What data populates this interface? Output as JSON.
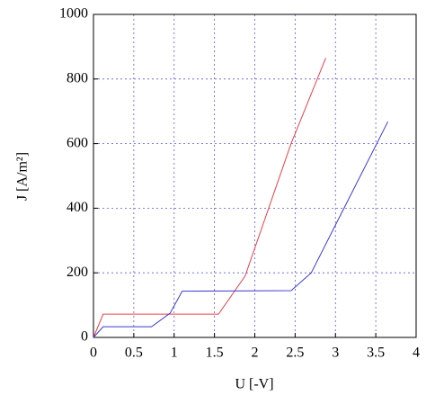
{
  "chart_data": {
    "type": "line",
    "x_label": "U [-V]",
    "y_label": "J [A/m²]",
    "xlim": [
      0,
      4
    ],
    "ylim": [
      0,
      1000
    ],
    "xticks": [
      0,
      0.5,
      1,
      1.5,
      2,
      2.5,
      3,
      3.5,
      4
    ],
    "yticks": [
      0,
      200,
      400,
      600,
      800,
      1000
    ],
    "grid": true,
    "series": [
      {
        "color": "#e8404a",
        "x": [
          0,
          0.12,
          1.55,
          1.88,
          2.45,
          2.88
        ],
        "values": [
          0,
          72,
          72,
          190,
          600,
          865
        ]
      },
      {
        "color": "#3a3ad0",
        "x": [
          0,
          0.12,
          0.72,
          0.95,
          1.1,
          2.45,
          2.7,
          3.65
        ],
        "values": [
          0,
          33,
          33,
          75,
          143,
          145,
          200,
          668
        ]
      }
    ]
  }
}
